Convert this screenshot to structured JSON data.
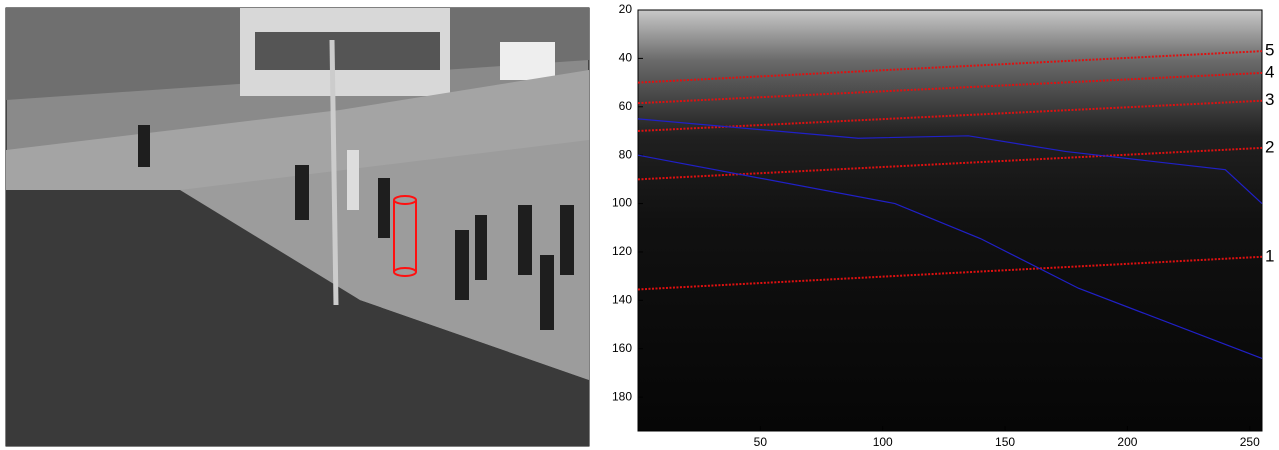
{
  "chart_data": {
    "type": "line",
    "xlim": [
      0,
      255
    ],
    "ylim": [
      20,
      194
    ],
    "y_reversed": true,
    "xticks": [
      50,
      100,
      150,
      200,
      250
    ],
    "yticks": [
      20,
      40,
      60,
      80,
      100,
      120,
      140,
      160,
      180
    ],
    "series": [
      {
        "name": "1",
        "color": "#e01010",
        "style": "dotted",
        "x": [
          0,
          255
        ],
        "values": [
          135.5,
          122
        ]
      },
      {
        "name": "2",
        "color": "#e01010",
        "style": "dotted",
        "x": [
          0,
          255
        ],
        "values": [
          90,
          77
        ]
      },
      {
        "name": "3",
        "color": "#e01010",
        "style": "dotted",
        "x": [
          0,
          255
        ],
        "values": [
          70,
          57.5
        ]
      },
      {
        "name": "4",
        "color": "#e01010",
        "style": "dotted",
        "x": [
          0,
          255
        ],
        "values": [
          58.5,
          46
        ]
      },
      {
        "name": "5",
        "color": "#e01010",
        "style": "dotted",
        "x": [
          0,
          255
        ],
        "values": [
          50,
          37
        ]
      },
      {
        "color": "#2020c8",
        "style": "solid",
        "x": [
          0,
          90,
          135,
          175,
          240,
          255
        ],
        "values": [
          65,
          73,
          72,
          78.5,
          86,
          100
        ]
      },
      {
        "color": "#2020c8",
        "style": "solid",
        "x": [
          0,
          105,
          140,
          180,
          255
        ],
        "values": [
          80,
          100,
          114.5,
          135,
          164
        ]
      }
    ]
  }
}
